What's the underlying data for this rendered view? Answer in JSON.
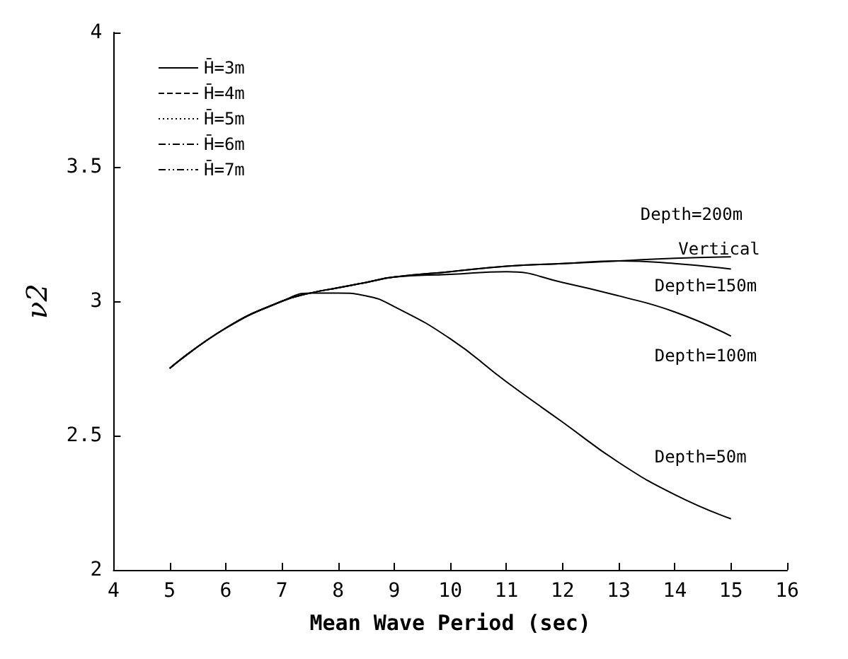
{
  "chart_data": {
    "type": "line",
    "xlabel": "Mean Wave Period (sec)",
    "ylabel": "ν2",
    "xlim": [
      4,
      16
    ],
    "xticks": [
      4,
      5,
      6,
      7,
      8,
      9,
      10,
      11,
      12,
      13,
      14,
      15,
      16
    ],
    "ylim": [
      2,
      4
    ],
    "yticks": [
      2,
      2.5,
      3,
      3.5,
      4
    ],
    "grid": false,
    "marker": "none",
    "line_style": "solid",
    "x": [
      5,
      6,
      7,
      7.5,
      8,
      8.5,
      9,
      10,
      11,
      12,
      13,
      14,
      15
    ],
    "series": [
      {
        "name": "Depth=200m",
        "color": "#000000",
        "values": [
          2.75,
          2.9,
          3.0,
          3.03,
          3.05,
          3.07,
          3.09,
          3.11,
          3.13,
          3.14,
          3.15,
          3.16,
          3.165
        ]
      },
      {
        "name": "Depth=150m",
        "color": "#000000",
        "values": [
          2.75,
          2.9,
          3.0,
          3.03,
          3.05,
          3.07,
          3.09,
          3.11,
          3.13,
          3.14,
          3.15,
          3.14,
          3.12
        ]
      },
      {
        "name": "Depth=100m",
        "color": "#000000",
        "values": [
          2.75,
          2.9,
          3.0,
          3.03,
          3.05,
          3.07,
          3.09,
          3.1,
          3.11,
          3.07,
          3.02,
          2.96,
          2.87
        ]
      },
      {
        "name": "Depth=50m",
        "color": "#000000",
        "values": [
          2.75,
          2.9,
          3.0,
          3.03,
          3.03,
          3.02,
          2.98,
          2.86,
          2.7,
          2.55,
          2.4,
          2.28,
          2.19
        ]
      }
    ],
    "annotations": [
      "H̄=3m",
      "H̄=4m",
      "H̄=5m",
      "H̄=6m",
      "H̄=7m",
      "Vertical"
    ]
  }
}
